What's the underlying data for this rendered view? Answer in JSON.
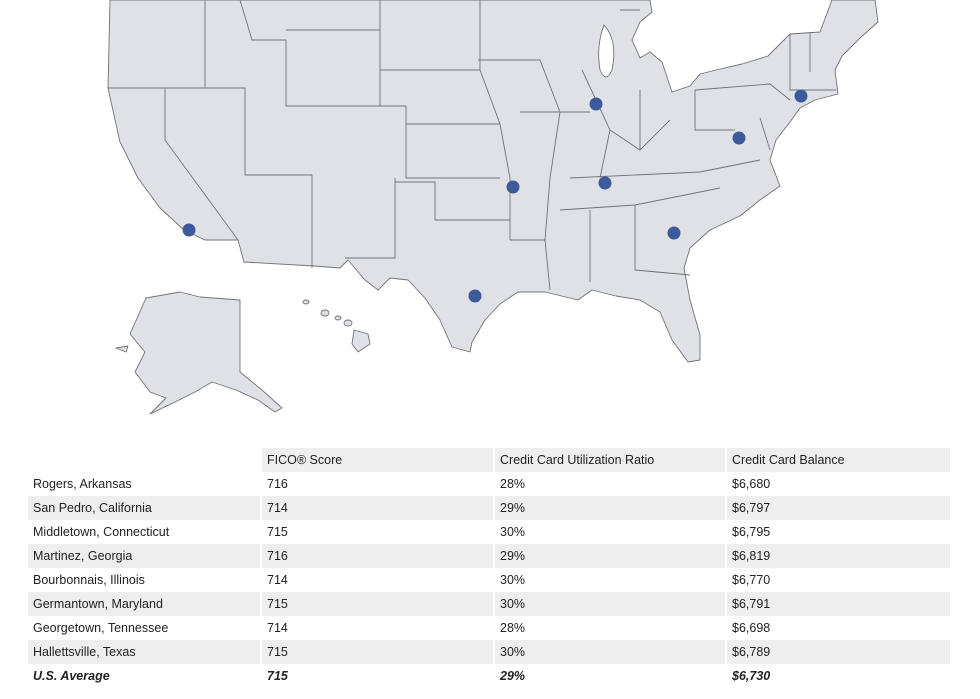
{
  "map": {
    "marker_color": "#3b5b9b",
    "state_fill": "#dfe1e6",
    "markers": [
      {
        "location": "Rogers, Arkansas"
      },
      {
        "location": "San Pedro, California"
      },
      {
        "location": "Middletown, Connecticut"
      },
      {
        "location": "Martinez, Georgia"
      },
      {
        "location": "Bourbonnais, Illinois"
      },
      {
        "location": "Germantown, Maryland"
      },
      {
        "location": "Georgetown, Tennessee"
      },
      {
        "location": "Hallettsville, Texas"
      }
    ]
  },
  "table": {
    "headers": [
      "",
      "FICO® Score",
      "Credit Card Utilization Ratio",
      "Credit Card Balance"
    ],
    "rows": [
      {
        "location": "Rogers, Arkansas",
        "fico": "716",
        "utilization": "28%",
        "balance": "$6,680"
      },
      {
        "location": "San Pedro, California",
        "fico": "714",
        "utilization": "29%",
        "balance": "$6,797"
      },
      {
        "location": "Middletown, Connecticut",
        "fico": "715",
        "utilization": "30%",
        "balance": "$6,795"
      },
      {
        "location": "Martinez, Georgia",
        "fico": "716",
        "utilization": "29%",
        "balance": "$6,819"
      },
      {
        "location": "Bourbonnais, Illinois",
        "fico": "714",
        "utilization": "30%",
        "balance": "$6,770"
      },
      {
        "location": "Germantown, Maryland",
        "fico": "715",
        "utilization": "30%",
        "balance": "$6,791"
      },
      {
        "location": "Georgetown, Tennessee",
        "fico": "714",
        "utilization": "28%",
        "balance": "$6,698"
      },
      {
        "location": "Hallettsville, Texas",
        "fico": "715",
        "utilization": "30%",
        "balance": "$6,789"
      }
    ],
    "average": {
      "location": "U.S. Average",
      "fico": "715",
      "utilization": "29%",
      "balance": "$6,730"
    }
  }
}
